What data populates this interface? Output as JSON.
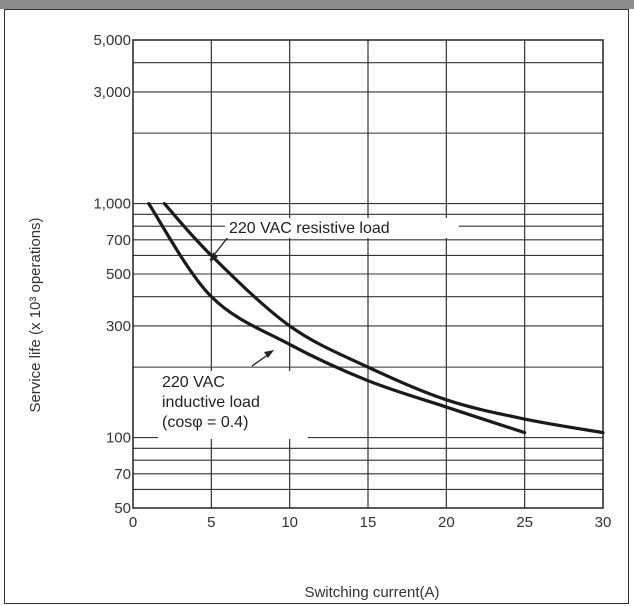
{
  "chart_data": {
    "type": "line",
    "title": "",
    "xlabel": "Switching current(A)",
    "ylabel": "Service life (x 10³ operations)",
    "xlim": [
      0,
      30
    ],
    "ylim": [
      50,
      5000
    ],
    "yscale": "log",
    "grid": true,
    "x_ticks": [
      0,
      5,
      10,
      15,
      20,
      25,
      30
    ],
    "y_ticks": [
      50,
      70,
      100,
      300,
      500,
      700,
      1000,
      3000,
      5000
    ],
    "x_tick_labels": [
      "0",
      "5",
      "10",
      "15",
      "20",
      "25",
      "30"
    ],
    "y_tick_labels": [
      "50",
      "70",
      "100",
      "300",
      "500",
      "700",
      "1,000",
      "3,000",
      "5,000"
    ],
    "series": [
      {
        "name": "220 VAC resistive load",
        "x": [
          2,
          5,
          10,
          15,
          20,
          25,
          30
        ],
        "y": [
          1000,
          600,
          300,
          200,
          145,
          120,
          105
        ]
      },
      {
        "name": "220 VAC inductive load (cosφ = 0.4)",
        "x": [
          1,
          5,
          10,
          15,
          20,
          25
        ],
        "y": [
          1000,
          400,
          250,
          175,
          135,
          105
        ]
      }
    ],
    "annotations": [
      {
        "lines": [
          "220 VAC resistive load"
        ]
      },
      {
        "lines": [
          "220 VAC",
          "inductive load",
          "(cosφ  = 0.4)"
        ]
      }
    ]
  }
}
